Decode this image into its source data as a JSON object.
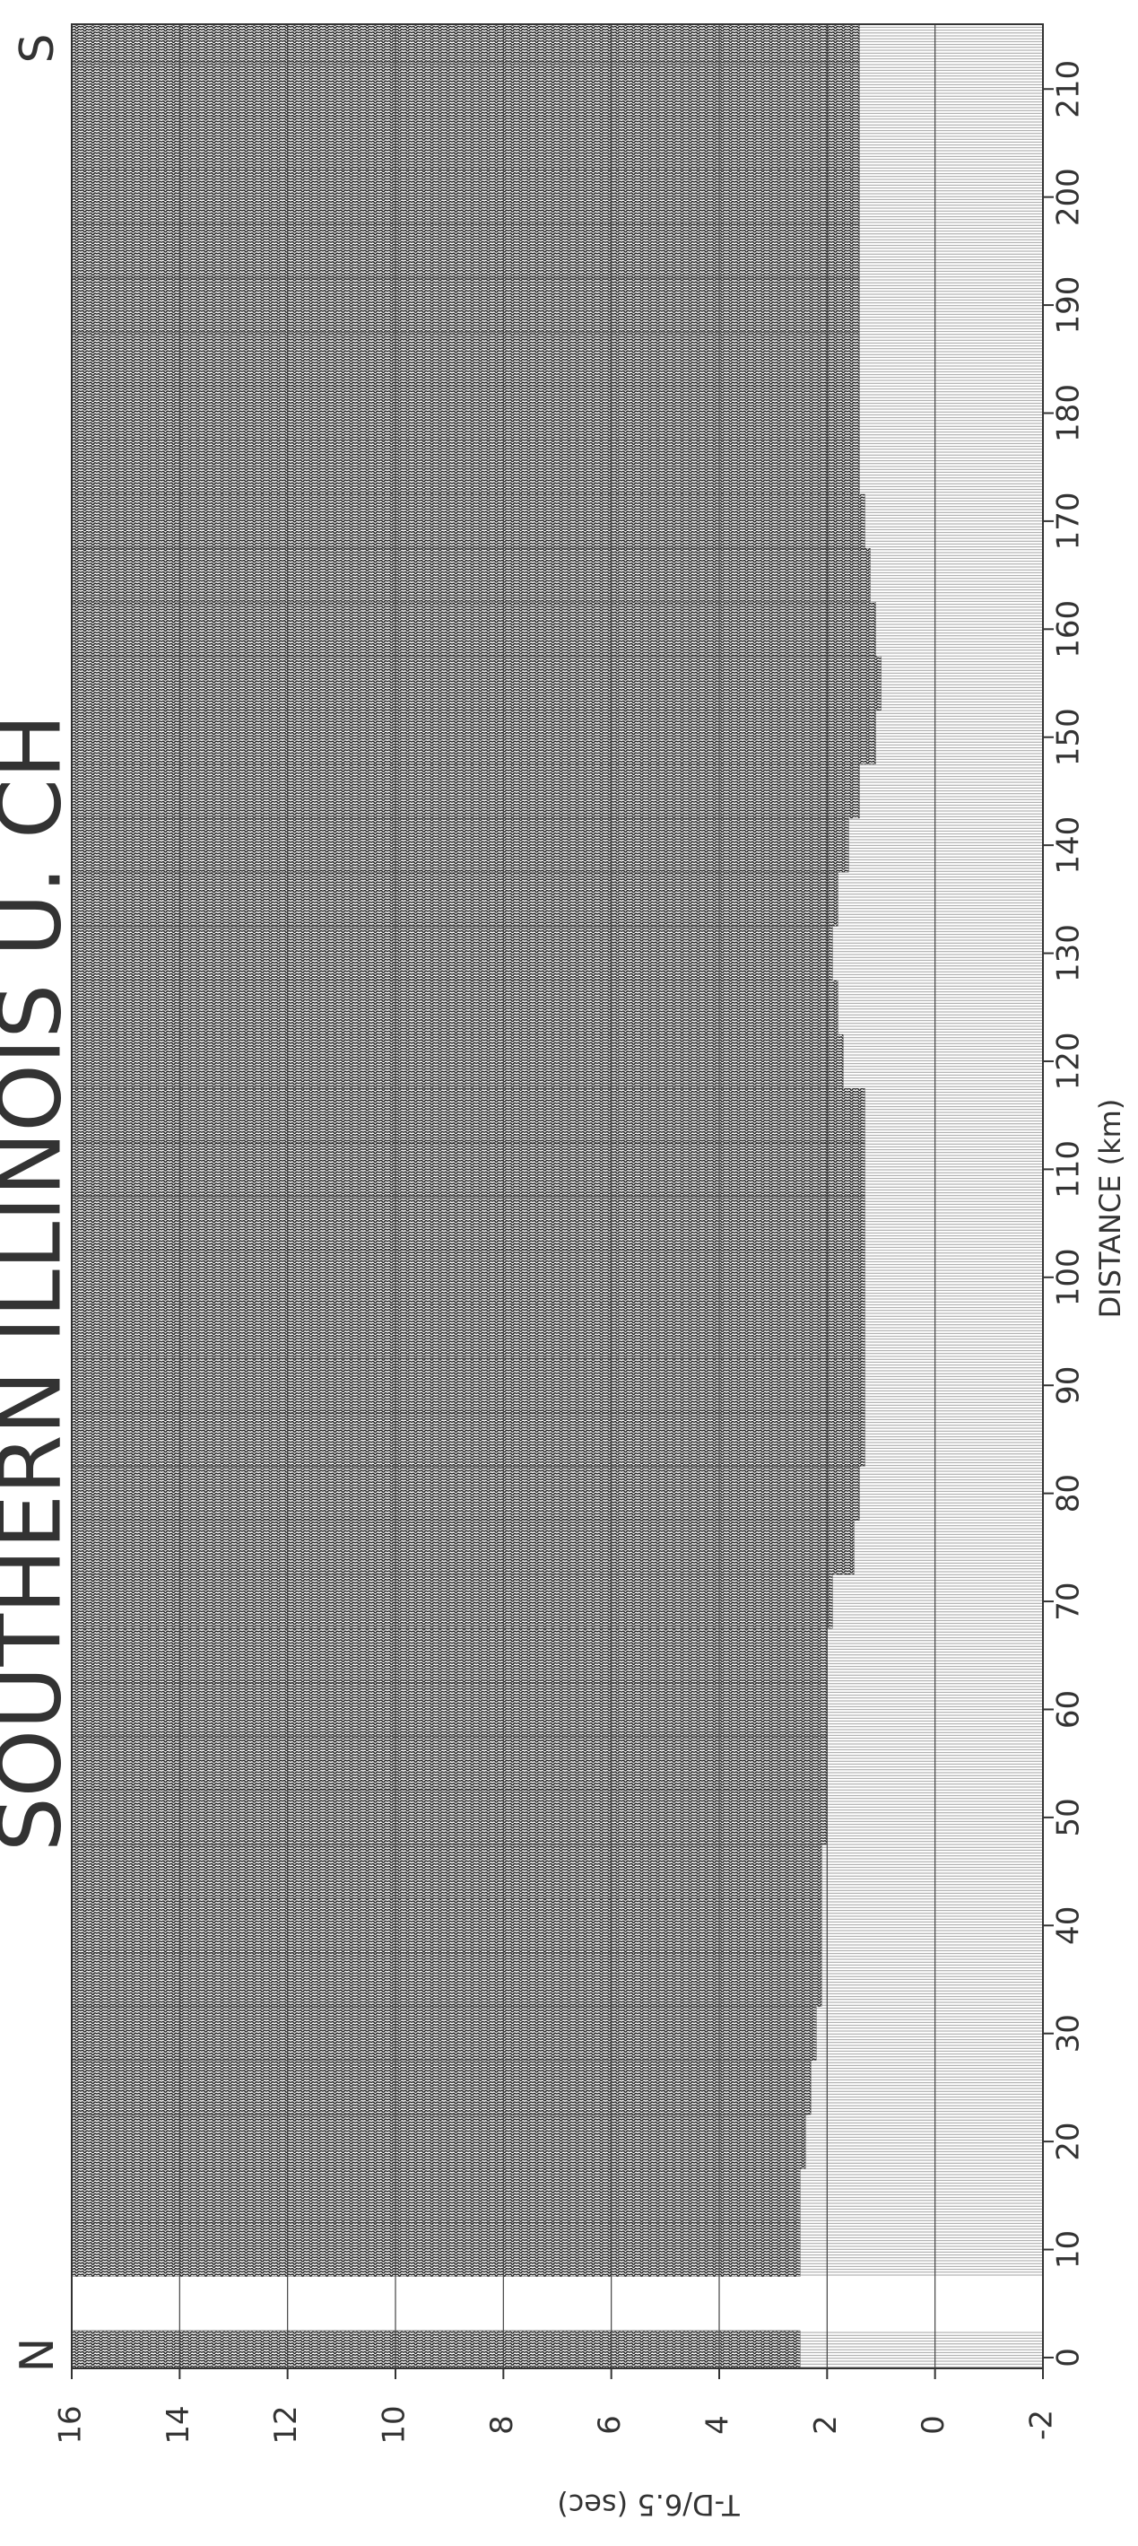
{
  "chart_data": {
    "type": "record-section",
    "title": "SOUTHERN ILLINOIS U. CH",
    "annotations": [
      "N",
      "S"
    ],
    "x_label": "DISTANCE (km)",
    "y_label": "T-D/6.5 (sec)",
    "x": [
      0,
      5,
      10,
      15,
      20,
      25,
      30,
      35,
      40,
      45,
      50,
      55,
      60,
      65,
      70,
      75,
      80,
      85,
      90,
      95,
      100,
      105,
      110,
      115,
      120,
      125,
      130,
      135,
      140,
      145,
      150,
      155,
      160,
      165,
      170,
      175,
      180,
      185,
      190,
      195,
      200,
      205,
      210,
      215
    ],
    "values": [
      2.5,
      null,
      2.5,
      2.5,
      2.4,
      2.3,
      2.2,
      2.1,
      2.1,
      2.1,
      2.0,
      2.0,
      2.0,
      2.0,
      1.9,
      1.5,
      1.4,
      1.3,
      1.3,
      1.3,
      1.3,
      1.3,
      1.3,
      1.3,
      1.7,
      1.8,
      1.9,
      1.8,
      1.6,
      1.4,
      1.1,
      1.0,
      1.1,
      1.2,
      1.3,
      1.4,
      1.4,
      1.4,
      1.4,
      1.4,
      1.4,
      1.4,
      1.4,
      1.4
    ],
    "xlim": [
      -1,
      216
    ],
    "xticks": [
      0,
      10,
      20,
      30,
      40,
      50,
      60,
      70,
      80,
      90,
      100,
      110,
      120,
      130,
      140,
      150,
      160,
      170,
      180,
      190,
      200,
      210
    ],
    "ylim": [
      16,
      -2
    ],
    "yticks": [
      16,
      14,
      12,
      10,
      8,
      6,
      4,
      2,
      0,
      -2
    ],
    "grid": true,
    "color": "#1a1a1a"
  }
}
